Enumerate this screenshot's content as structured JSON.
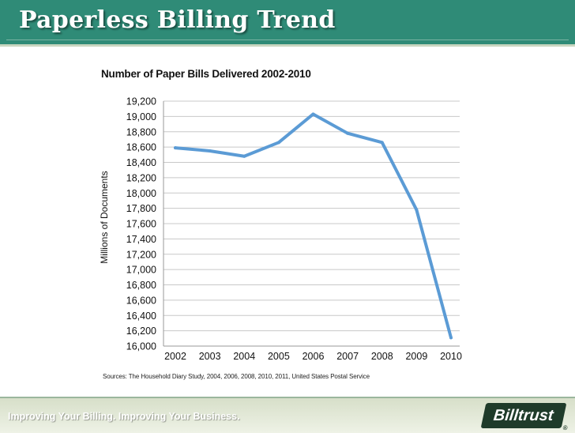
{
  "slide": {
    "title": "Paperless Billing Trend",
    "footer_tagline": "Improving Your Billing.  Improving Your Business.",
    "logo_text": "Billtrust",
    "logo_mark": "®"
  },
  "colors": {
    "header_bg": "#2f8b77",
    "line": "#5b9bd5",
    "grid": "#c8c8c8"
  },
  "chart_data": {
    "type": "line",
    "title": "Number of Paper Bills Delivered 2002-2010",
    "ylabel": "Millions of Documents",
    "xlabel": "",
    "source": "Sources: The Household Diary Study, 2004, 2006, 2008, 2010, 2011, United States Postal Service",
    "x": [
      "2002",
      "2003",
      "2004",
      "2005",
      "2006",
      "2007",
      "2008",
      "2009",
      "2010"
    ],
    "y_ticks": [
      "19,200",
      "19,000",
      "18,800",
      "18,600",
      "18,400",
      "18,200",
      "18,000",
      "17,800",
      "17,600",
      "17,400",
      "17,200",
      "17,000",
      "16,800",
      "16,600",
      "16,400",
      "16,200",
      "16,000"
    ],
    "ylim": [
      16000,
      19200
    ],
    "series": [
      {
        "values": [
          18590,
          18550,
          18480,
          18660,
          19030,
          18780,
          18660,
          17780,
          16110
        ]
      }
    ],
    "grid": true,
    "legend": "none"
  }
}
